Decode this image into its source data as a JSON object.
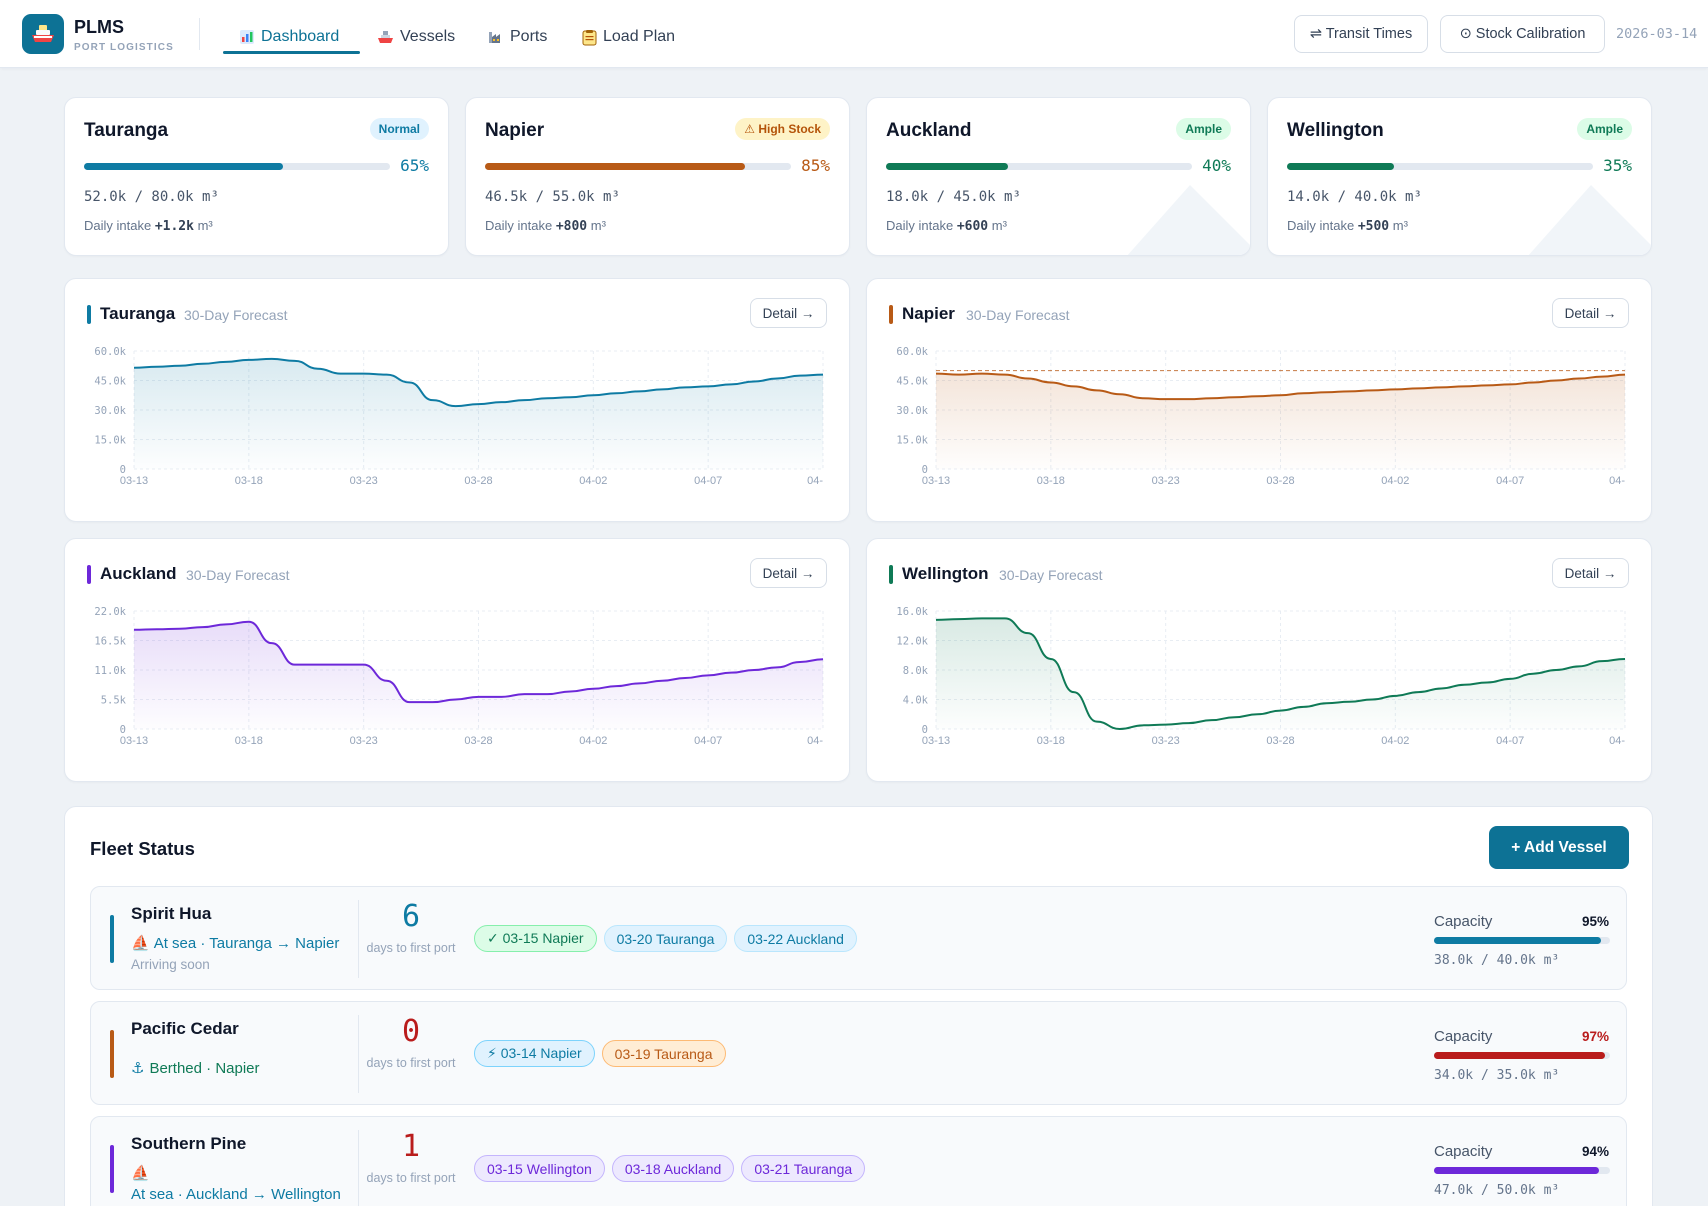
{
  "app": {
    "name": "PLMS",
    "subtitle": "PORT LOGISTICS",
    "date": "2026-03-14",
    "colors": {
      "primary": "#0d7295",
      "tauranga": "#0e7ba3",
      "napier": "#b85a16",
      "auckland": "#6d28d9",
      "wellington": "#0f7a56"
    }
  },
  "nav": {
    "items": [
      {
        "label": "Dashboard",
        "icon": "chart-icon",
        "active": true
      },
      {
        "label": "Vessels",
        "icon": "ship-icon",
        "active": false
      },
      {
        "label": "Ports",
        "icon": "factory-icon",
        "active": false
      },
      {
        "label": "Load Plan",
        "icon": "clipboard-icon",
        "active": false
      }
    ]
  },
  "toolbar": {
    "transit_label": "⇌ Transit Times",
    "calibration_label": "⊙ Stock Calibration"
  },
  "ports": [
    {
      "name": "Tauranga",
      "badge": "Normal",
      "pct_text": "65%",
      "fill": 0.65,
      "volume": "52.0k / 80.0k m³",
      "intake_label": "Daily intake",
      "intake_value": "+1.2k",
      "intake_unit": "m³"
    },
    {
      "name": "Napier",
      "badge": "⚠ High Stock",
      "pct_text": "85%",
      "fill": 0.85,
      "volume": "46.5k / 55.0k m³",
      "intake_label": "Daily intake",
      "intake_value": "+800",
      "intake_unit": "m³"
    },
    {
      "name": "Auckland",
      "badge": "Ample",
      "pct_text": "40%",
      "fill": 0.4,
      "volume": "18.0k / 45.0k m³",
      "intake_label": "Daily intake",
      "intake_value": "+600",
      "intake_unit": "m³"
    },
    {
      "name": "Wellington",
      "badge": "Ample",
      "pct_text": "35%",
      "fill": 0.35,
      "volume": "14.0k / 40.0k m³",
      "intake_label": "Daily intake",
      "intake_value": "+500",
      "intake_unit": "m³"
    }
  ],
  "forecast": {
    "subtitle": "30-Day Forecast",
    "detail_label": "Detail →"
  },
  "chart_data": [
    {
      "type": "area",
      "title": "Tauranga",
      "subtitle": "30-Day Forecast",
      "x_ticks": [
        "03-13",
        "03-18",
        "03-23",
        "03-28",
        "04-02",
        "04-07",
        "04-"
      ],
      "y_ticks": [
        "0",
        "15.0k",
        "30.0k",
        "45.0k",
        "60.0k"
      ],
      "ylim": [
        0,
        60000
      ],
      "grid": true,
      "series": [
        {
          "values": [
            51500,
            52000,
            52500,
            53500,
            54500,
            55500,
            56000,
            55000,
            51000,
            48500,
            48500,
            48000,
            44000,
            35000,
            32000,
            33000,
            34000,
            35000,
            36000,
            36500,
            37500,
            38500,
            39500,
            40500,
            41500,
            42000,
            43000,
            44500,
            46000,
            47500,
            48000
          ]
        }
      ]
    },
    {
      "type": "area",
      "title": "Napier",
      "subtitle": "30-Day Forecast",
      "x_ticks": [
        "03-13",
        "03-18",
        "03-23",
        "03-28",
        "04-02",
        "04-07",
        "04-"
      ],
      "y_ticks": [
        "0",
        "15.0k",
        "30.0k",
        "45.0k",
        "60.0k"
      ],
      "ylim": [
        0,
        60000
      ],
      "grid": true,
      "threshold": 50000,
      "series": [
        {
          "values": [
            48500,
            48000,
            48500,
            48000,
            46000,
            44000,
            42000,
            40000,
            38000,
            36000,
            35500,
            35500,
            36000,
            36500,
            37000,
            37500,
            38500,
            39000,
            39500,
            40000,
            40500,
            41000,
            41500,
            42000,
            42500,
            43000,
            44000,
            45000,
            46000,
            47000,
            48000
          ]
        }
      ]
    },
    {
      "type": "area",
      "title": "Auckland",
      "subtitle": "30-Day Forecast",
      "x_ticks": [
        "03-13",
        "03-18",
        "03-23",
        "03-28",
        "04-02",
        "04-07",
        "04-"
      ],
      "y_ticks": [
        "0",
        "5.5k",
        "11.0k",
        "16.5k",
        "22.0k"
      ],
      "ylim": [
        0,
        22000
      ],
      "grid": true,
      "series": [
        {
          "values": [
            18500,
            18600,
            18700,
            19000,
            19500,
            20000,
            16000,
            12000,
            12000,
            12000,
            12000,
            9000,
            5000,
            5000,
            5500,
            6000,
            6000,
            6500,
            6500,
            7000,
            7500,
            8000,
            8500,
            9000,
            9500,
            10000,
            10500,
            11000,
            11500,
            12500,
            13000
          ]
        }
      ]
    },
    {
      "type": "area",
      "title": "Wellington",
      "subtitle": "30-Day Forecast",
      "x_ticks": [
        "03-13",
        "03-18",
        "03-23",
        "03-28",
        "04-02",
        "04-07",
        "04-"
      ],
      "y_ticks": [
        "0",
        "4.0k",
        "8.0k",
        "12.0k",
        "16.0k"
      ],
      "ylim": [
        0,
        16000
      ],
      "grid": true,
      "series": [
        {
          "values": [
            14800,
            14900,
            15000,
            15000,
            13000,
            9500,
            5000,
            1000,
            0,
            500,
            600,
            800,
            1200,
            1600,
            2000,
            2500,
            3000,
            3500,
            3700,
            4000,
            4500,
            5000,
            5500,
            6000,
            6300,
            6800,
            7500,
            8000,
            8500,
            9200,
            9500
          ]
        }
      ]
    }
  ],
  "fleet": {
    "title": "Fleet Status",
    "add_label": "+ Add Vessel",
    "capacity_label": "Capacity",
    "days_label": "days to first port",
    "vessels": [
      {
        "name": "Spirit Hua",
        "status_icon": "⛵",
        "status": "At sea · Tauranga → Napier",
        "note": "Arriving soon",
        "days": "6",
        "accent": "#0e7ba3",
        "chips": [
          "✓ 03-15 Napier",
          "03-20 Tauranga",
          "03-22 Auckland"
        ],
        "capacity_pct": "95%",
        "capacity_fill": 0.95,
        "capacity_volume": "38.0k / 40.0k m³"
      },
      {
        "name": "Pacific Cedar",
        "status_icon": "⚓",
        "status": "Berthed · Napier",
        "note": "",
        "days": "0",
        "accent": "#b85a16",
        "chips": [
          "⚡ 03-14 Napier",
          "03-19 Tauranga"
        ],
        "capacity_pct": "97%",
        "capacity_fill": 0.97,
        "capacity_volume": "34.0k / 35.0k m³"
      },
      {
        "name": "Southern Pine",
        "status_icon": "⛵",
        "status": "At sea · Auckland → Wellington",
        "note": "",
        "days": "1",
        "accent": "#6d28d9",
        "chips": [
          "03-15 Wellington",
          "03-18 Auckland",
          "03-21 Tauranga"
        ],
        "capacity_pct": "94%",
        "capacity_fill": 0.94,
        "capacity_volume": "47.0k / 50.0k m³"
      }
    ]
  }
}
